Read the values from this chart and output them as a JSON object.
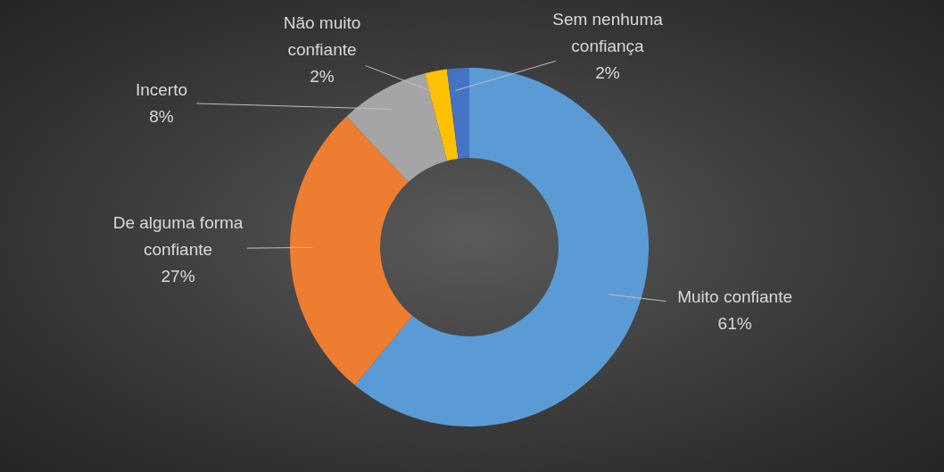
{
  "chart_data": {
    "type": "donut",
    "categories": [
      "Muito confiante",
      "De alguma forma confiante",
      "Incerto",
      "Não muito confiante",
      "Sem nenhuma confiança"
    ],
    "values": [
      61,
      27,
      8,
      2,
      2
    ],
    "value_labels": [
      "61%",
      "27%",
      "8%",
      "2%",
      "2%"
    ],
    "colors": [
      "#5b9bd5",
      "#ed7d31",
      "#a5a5a5",
      "#ffc000",
      "#4472c4"
    ],
    "legend": false
  }
}
